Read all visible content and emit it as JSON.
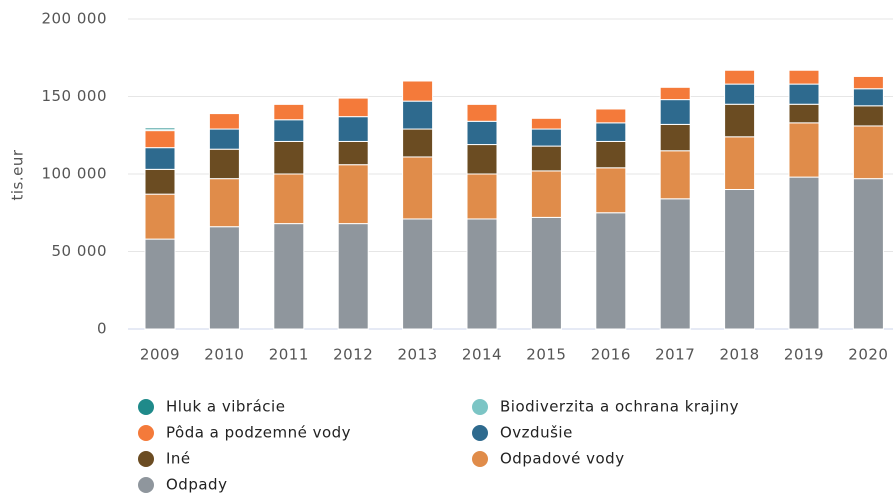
{
  "chart_data": {
    "type": "stacked_bar",
    "y_label": "tis.eur",
    "categories": [
      "2009",
      "2010",
      "2011",
      "2012",
      "2013",
      "2014",
      "2015",
      "2016",
      "2017",
      "2018",
      "2019",
      "2020"
    ],
    "series": [
      {
        "name": "Hluk a vibrácie",
        "color": "#1f8a8a",
        "values": [
          1000,
          300,
          300,
          300,
          300,
          300,
          300,
          300,
          300,
          300,
          300,
          300
        ]
      },
      {
        "name": "Biodiverzita a ochrana krajiny",
        "color": "#7cc5c5",
        "values": [
          1000,
          300,
          300,
          300,
          300,
          300,
          300,
          300,
          300,
          300,
          300,
          300
        ]
      },
      {
        "name": "Pôda a podzemné vody",
        "color": "#f47a3a",
        "values": [
          11000,
          10000,
          10000,
          12000,
          13000,
          11000,
          7000,
          9000,
          8000,
          9000,
          9000,
          8000
        ]
      },
      {
        "name": "Ovzdušie",
        "color": "#2e6a8e",
        "values": [
          14000,
          13000,
          14000,
          16000,
          18000,
          15000,
          11000,
          12000,
          16000,
          13000,
          13000,
          11000
        ]
      },
      {
        "name": "Iné",
        "color": "#6b4c22",
        "values": [
          16000,
          19000,
          21000,
          15000,
          18000,
          19000,
          16000,
          17000,
          17000,
          21000,
          12000,
          13000
        ]
      },
      {
        "name": "Odpadové vody",
        "color": "#e08c4a",
        "values": [
          29000,
          31000,
          32000,
          38000,
          40000,
          29000,
          30000,
          29000,
          31000,
          34000,
          35000,
          34000
        ]
      },
      {
        "name": "Odpady",
        "color": "#8f969d",
        "values": [
          58000,
          66000,
          68000,
          68000,
          71000,
          71000,
          72000,
          75000,
          84000,
          90000,
          98000,
          97000
        ]
      }
    ],
    "ylim": [
      0,
      200000
    ],
    "yticks": [
      0,
      {
        "value": 50000,
        "label": "50 000"
      },
      {
        "value": 100000,
        "label": "100 000"
      },
      {
        "value": 150000,
        "label": "150 000"
      },
      {
        "value": 200000,
        "label": "200 000"
      }
    ],
    "grid": true
  }
}
